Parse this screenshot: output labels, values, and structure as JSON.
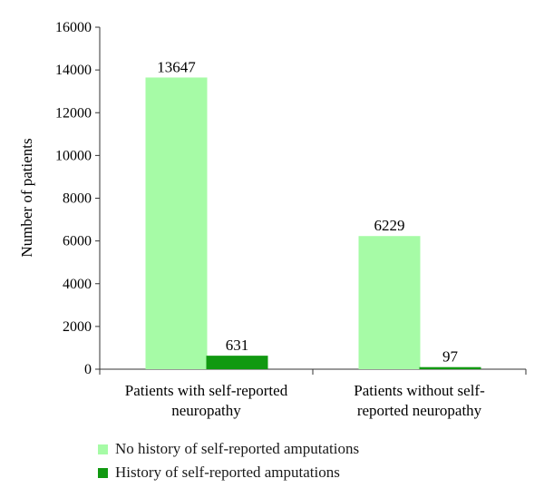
{
  "chart_data": {
    "type": "bar",
    "categories": [
      [
        "Patients with self-reported",
        "neuropathy"
      ],
      [
        "Patients without self-",
        "reported neuropathy"
      ]
    ],
    "series": [
      {
        "name": "No history of self-reported amputations",
        "color": "#a6fba6",
        "values": [
          13647,
          6229
        ]
      },
      {
        "name": "History of self-reported amputations",
        "color": "#119911",
        "values": [
          631,
          97
        ]
      }
    ],
    "data_labels": [
      [
        "13647",
        "631"
      ],
      [
        "6229",
        "97"
      ]
    ],
    "ylabel": "Number of patients",
    "xlabel": "",
    "ylim": [
      0,
      16000
    ],
    "yticks": [
      0,
      2000,
      4000,
      6000,
      8000,
      10000,
      12000,
      14000,
      16000
    ],
    "grid": false,
    "legend_position": "bottom-left"
  }
}
